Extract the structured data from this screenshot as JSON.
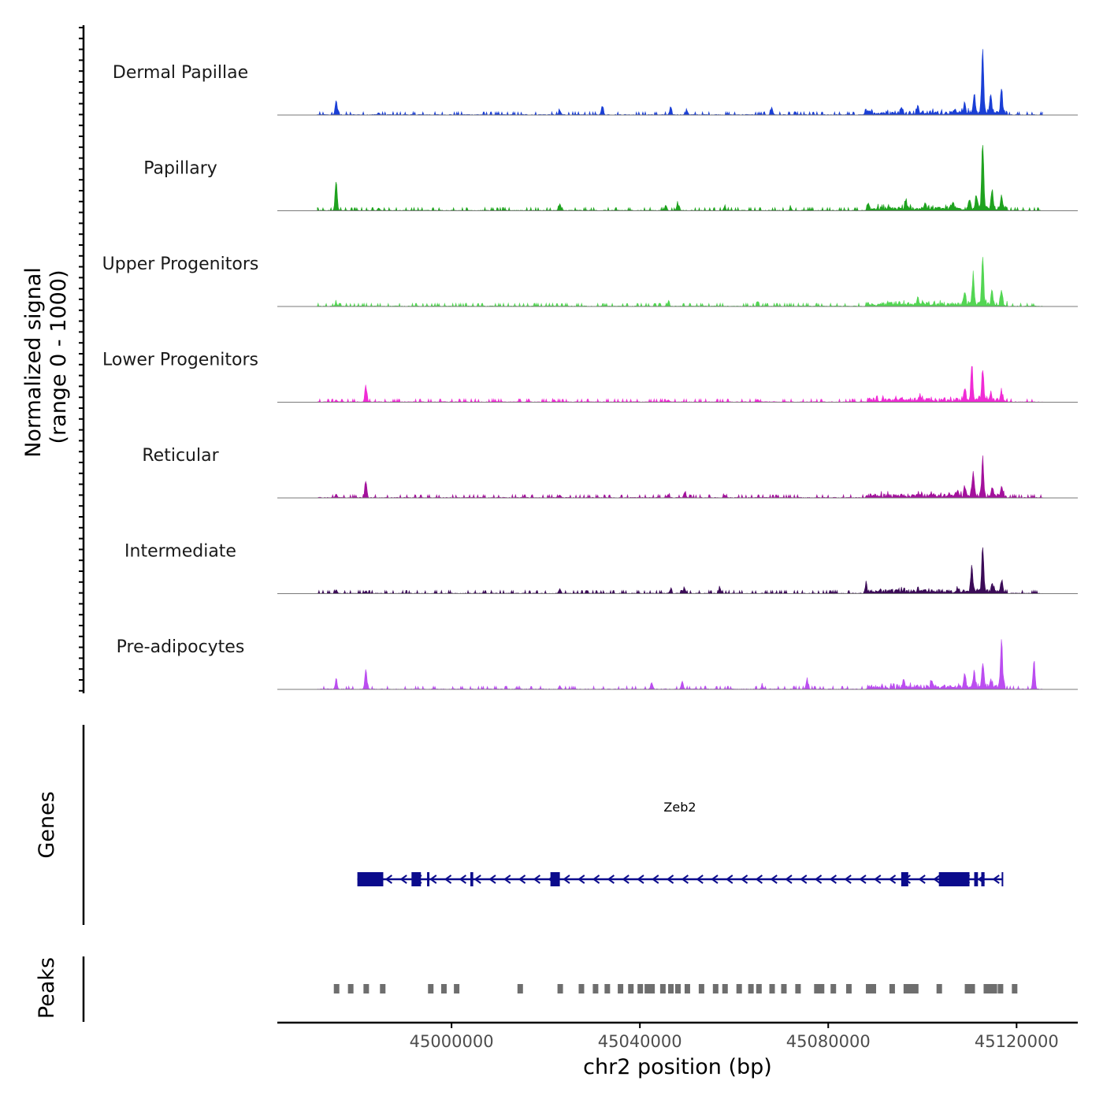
{
  "chart_data": {
    "type": "area",
    "chromosome": "chr2",
    "xlabel": "chr2 position (bp)",
    "ylabel_line1": "Normalized signal",
    "ylabel_line2": "(range 0 - 1000)",
    "xlim": [
      44963000,
      45133000
    ],
    "xticks": [
      45000000,
      45040000,
      45080000,
      45120000
    ],
    "xtick_labels": [
      "45000000",
      "45040000",
      "45080000",
      "45120000"
    ],
    "signal_range": [
      0,
      1000
    ],
    "tracks": [
      {
        "name": "Dermal Papillae",
        "color": "#1a3fd6",
        "peaks": [
          [
            44975500,
            0.22
          ],
          [
            44984500,
            0.03
          ],
          [
            45023000,
            0.06
          ],
          [
            45032000,
            0.13
          ],
          [
            45046500,
            0.08
          ],
          [
            45050000,
            0.06
          ],
          [
            45068000,
            0.11
          ],
          [
            45088000,
            0.05
          ],
          [
            45095500,
            0.07
          ],
          [
            45099000,
            0.09
          ],
          [
            45109000,
            0.15
          ],
          [
            45111000,
            0.3
          ],
          [
            45112800,
            1.0
          ],
          [
            45114500,
            0.28
          ],
          [
            45116800,
            0.38
          ]
        ]
      },
      {
        "name": "Papillary",
        "color": "#1fa21f",
        "peaks": [
          [
            44975500,
            0.45
          ],
          [
            44984500,
            0.04
          ],
          [
            45023000,
            0.1
          ],
          [
            45045500,
            0.08
          ],
          [
            45048000,
            0.1
          ],
          [
            45058000,
            0.05
          ],
          [
            45072000,
            0.04
          ],
          [
            45088500,
            0.07
          ],
          [
            45096500,
            0.1
          ],
          [
            45100500,
            0.07
          ],
          [
            45106500,
            0.1
          ],
          [
            45110000,
            0.16
          ],
          [
            45111500,
            0.2
          ],
          [
            45112800,
            1.0
          ],
          [
            45114800,
            0.3
          ],
          [
            45116800,
            0.18
          ]
        ]
      },
      {
        "name": "Upper Progenitors",
        "color": "#53d653",
        "peaks": [
          [
            44975500,
            0.05
          ],
          [
            45046000,
            0.05
          ],
          [
            45065000,
            0.03
          ],
          [
            45095000,
            0.03
          ],
          [
            45099000,
            0.07
          ],
          [
            45109000,
            0.2
          ],
          [
            45110800,
            0.45
          ],
          [
            45112800,
            0.7
          ],
          [
            45114800,
            0.2
          ],
          [
            45116800,
            0.22
          ]
        ]
      },
      {
        "name": "Lower Progenitors",
        "color": "#f02bd5",
        "peaks": [
          [
            44975500,
            0.03
          ],
          [
            44981800,
            0.22
          ],
          [
            45021800,
            0.03
          ],
          [
            45046000,
            0.03
          ],
          [
            45065000,
            0.04
          ],
          [
            45099500,
            0.04
          ],
          [
            45109000,
            0.18
          ],
          [
            45110500,
            0.5
          ],
          [
            45112800,
            0.48
          ],
          [
            45114500,
            0.1
          ],
          [
            45116800,
            0.11
          ]
        ]
      },
      {
        "name": "Reticular",
        "color": "#a3119c",
        "peaks": [
          [
            44975500,
            0.05
          ],
          [
            44981800,
            0.25
          ],
          [
            45023000,
            0.04
          ],
          [
            45046000,
            0.05
          ],
          [
            45049500,
            0.08
          ],
          [
            45058000,
            0.04
          ],
          [
            45099500,
            0.05
          ],
          [
            45107500,
            0.08
          ],
          [
            45109000,
            0.12
          ],
          [
            45110800,
            0.35
          ],
          [
            45112800,
            0.55
          ],
          [
            45114800,
            0.14
          ],
          [
            45116800,
            0.14
          ]
        ]
      },
      {
        "name": "Intermediate",
        "color": "#3b0b57",
        "peaks": [
          [
            44975500,
            0.05
          ],
          [
            44981800,
            0.04
          ],
          [
            45023000,
            0.07
          ],
          [
            45046500,
            0.05
          ],
          [
            45049500,
            0.07
          ],
          [
            45057000,
            0.08
          ],
          [
            45088000,
            0.12
          ],
          [
            45099000,
            0.05
          ],
          [
            45107500,
            0.06
          ],
          [
            45110500,
            0.38
          ],
          [
            45112800,
            0.7
          ],
          [
            45114800,
            0.1
          ],
          [
            45116800,
            0.14
          ]
        ]
      },
      {
        "name": "Pre-adipocytes",
        "color": "#bb4df0",
        "peaks": [
          [
            44975500,
            0.12
          ],
          [
            44981800,
            0.3
          ],
          [
            45023000,
            0.05
          ],
          [
            45042500,
            0.1
          ],
          [
            45049000,
            0.12
          ],
          [
            45066000,
            0.05
          ],
          [
            45075500,
            0.14
          ],
          [
            45096000,
            0.12
          ],
          [
            45102000,
            0.09
          ],
          [
            45109000,
            0.22
          ],
          [
            45111000,
            0.25
          ],
          [
            45112800,
            0.35
          ],
          [
            45114500,
            0.12
          ],
          [
            45116800,
            0.72
          ],
          [
            45123700,
            0.42
          ]
        ]
      }
    ],
    "gene": {
      "name": "Zeb2",
      "strand": "-",
      "start": 44980000,
      "end": 45117000,
      "exons": [
        [
          44980000,
          44985500
        ],
        [
          44991500,
          44993500
        ],
        [
          44994800,
          44995300
        ],
        [
          45004000,
          45004600
        ],
        [
          45021000,
          45023000
        ],
        [
          45095500,
          45097000
        ],
        [
          45103500,
          45110000
        ],
        [
          45111000,
          45111800
        ],
        [
          45112500,
          45113200
        ]
      ],
      "color": "#0b0b8c"
    },
    "peaks_track": {
      "color": "#6e6e6e",
      "regions": [
        44975500,
        44978500,
        44981800,
        44985300,
        44995500,
        44998300,
        45001000,
        45014500,
        45023000,
        45027500,
        45030500,
        45033000,
        45035800,
        45038000,
        45040000,
        45041500,
        45042500,
        45044800,
        45046500,
        45048000,
        45050000,
        45053000,
        45056000,
        45058000,
        45061000,
        45063500,
        45065200,
        45068000,
        45070500,
        45073500,
        45077500,
        45078500,
        45081000,
        45084300,
        45088500,
        45089500,
        45093500,
        45096500,
        45097500,
        45098500,
        45103500,
        45109500,
        45110500,
        45113500,
        45114500,
        45115200,
        45116500,
        45119500
      ]
    }
  }
}
